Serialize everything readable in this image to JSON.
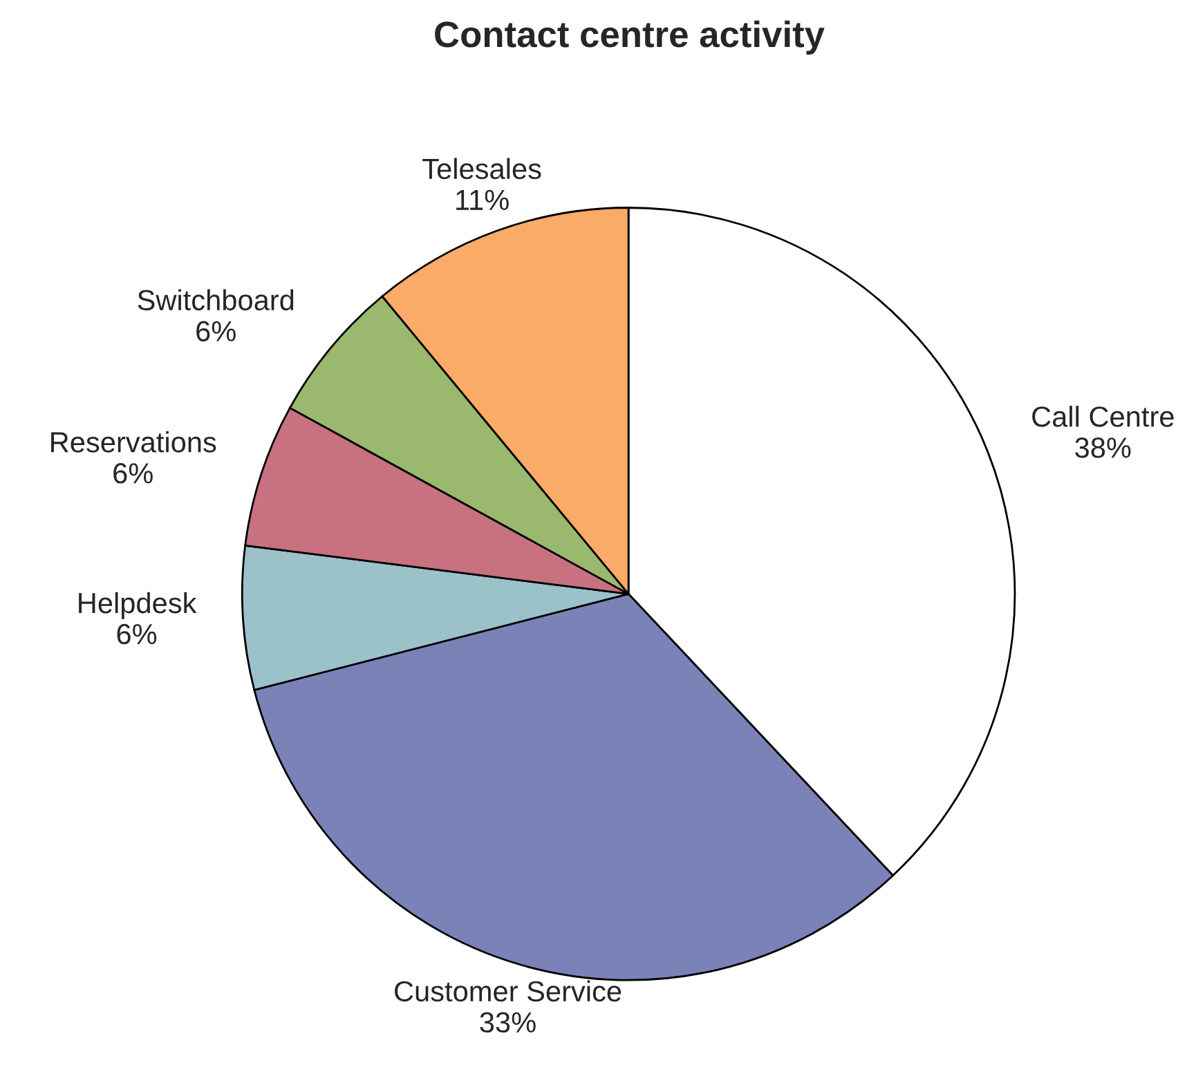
{
  "chart_data": {
    "type": "pie",
    "title": "Contact centre activity",
    "categories": [
      "Call Centre",
      "Customer Service",
      "Helpdesk",
      "Reservations",
      "Switchboard",
      "Telesales"
    ],
    "values": [
      38,
      33,
      6,
      6,
      6,
      11
    ],
    "colors": [
      "#ffffff",
      "#7b82b8",
      "#9bc1c9",
      "#c87180",
      "#9bb86f",
      "#fbab68"
    ],
    "value_labels": [
      "38%",
      "33%",
      "6%",
      "6%",
      "6%",
      "11%"
    ],
    "legend": false
  }
}
